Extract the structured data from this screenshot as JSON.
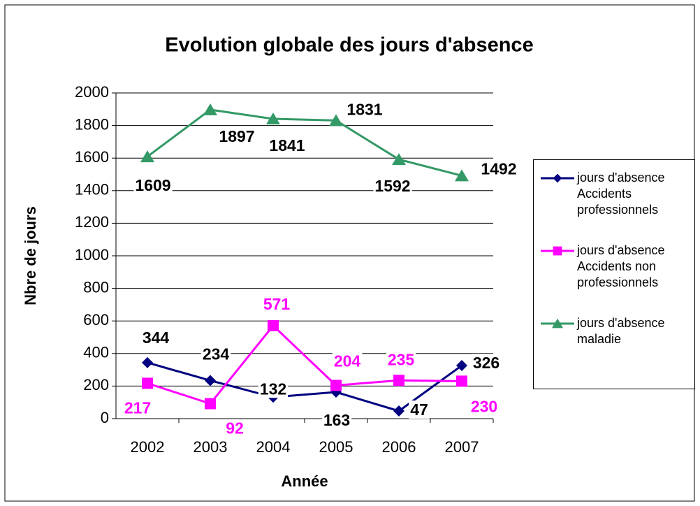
{
  "chart_data": {
    "type": "line",
    "title": "Evolution globale des jours d'absence",
    "x_label": "Année",
    "y_label": "Nbre de jours",
    "categories": [
      "2002",
      "2003",
      "2004",
      "2005",
      "2006",
      "2007"
    ],
    "series": [
      {
        "name": "jours d'absence Accidents professionnels",
        "color": "#000080",
        "label_color": "#000000",
        "marker": "diamond",
        "values": [
          344,
          234,
          132,
          163,
          47,
          326
        ]
      },
      {
        "name": "jours d'absence Accidents non professionnels",
        "color": "#ff00ff",
        "label_color": "#ff00ff",
        "marker": "square",
        "values": [
          217,
          92,
          571,
          204,
          235,
          230
        ]
      },
      {
        "name": "jours d'absence maladie",
        "color": "#339966",
        "label_color": "#000000",
        "marker": "triangle",
        "values": [
          1609,
          1897,
          1841,
          1831,
          1592,
          1492
        ]
      }
    ],
    "ylim": [
      0,
      2000
    ],
    "yticks": [
      0,
      200,
      400,
      600,
      800,
      1000,
      1200,
      1400,
      1600,
      1800,
      2000
    ],
    "grid": true,
    "legend": "right"
  }
}
